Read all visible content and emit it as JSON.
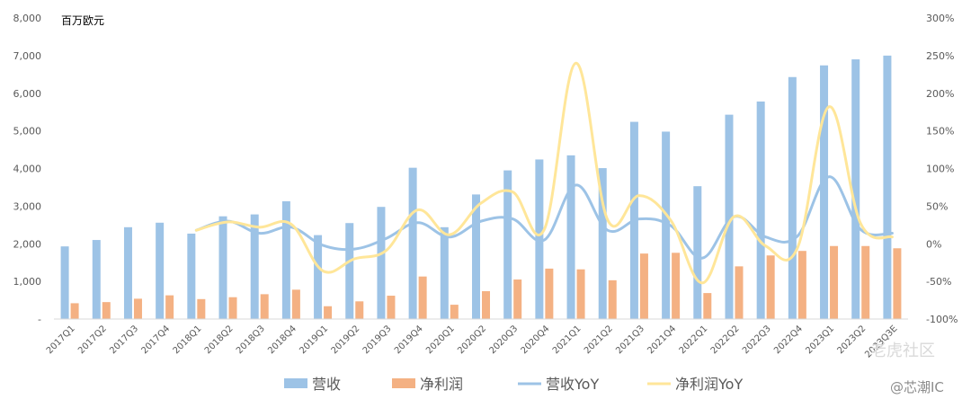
{
  "chart_data": {
    "type": "bar",
    "unit_label": "百万欧元",
    "categories": [
      "2017Q1",
      "2017Q2",
      "2017Q3",
      "2017Q4",
      "2018Q1",
      "2018Q2",
      "2018Q3",
      "2018Q4",
      "2019Q1",
      "2019Q2",
      "2019Q3",
      "2019Q4",
      "2020Q1",
      "2020Q2",
      "2020Q3",
      "2020Q4",
      "2021Q1",
      "2021Q2",
      "2021Q3",
      "2021Q4",
      "2022Q1",
      "2022Q2",
      "2022Q3",
      "2022Q4",
      "2023Q1",
      "2023Q2",
      "2023Q3E"
    ],
    "series": [
      {
        "name": "营收",
        "kind": "bar",
        "axis": "left",
        "color": "#9dc3e6",
        "values": [
          1930,
          2100,
          2440,
          2560,
          2270,
          2730,
          2780,
          3130,
          2230,
          2550,
          2980,
          4020,
          2440,
          3310,
          3950,
          4240,
          4350,
          4010,
          5240,
          4980,
          3530,
          5430,
          5780,
          6430,
          6740,
          6900,
          7000
        ]
      },
      {
        "name": "净利润",
        "kind": "bar",
        "axis": "left",
        "color": "#f4b183",
        "values": [
          420,
          450,
          540,
          630,
          530,
          580,
          660,
          780,
          340,
          470,
          620,
          1130,
          380,
          740,
          1050,
          1340,
          1320,
          1030,
          1740,
          1760,
          690,
          1400,
          1690,
          1810,
          1940,
          1940,
          1880
        ]
      },
      {
        "name": "营收YoY",
        "kind": "line",
        "axis": "right",
        "color": "#9dc3e6",
        "values": [
          null,
          null,
          null,
          null,
          18,
          30,
          14,
          22,
          -2,
          -7,
          7,
          28,
          9,
          30,
          33,
          5,
          78,
          18,
          33,
          24,
          -19,
          36,
          9,
          10,
          89,
          19,
          14
        ]
      },
      {
        "name": "净利润YoY",
        "kind": "line",
        "axis": "right",
        "color": "#ffe699",
        "values": [
          null,
          null,
          null,
          null,
          18,
          29,
          22,
          26,
          -36,
          -20,
          -9,
          45,
          12,
          54,
          69,
          19,
          240,
          32,
          64,
          31,
          -52,
          36,
          -3,
          -6,
          182,
          27,
          9
        ]
      }
    ],
    "left_axis": {
      "min": 0,
      "max": 8000,
      "ticks": [
        "-",
        "1,000",
        "2,000",
        "3,000",
        "4,000",
        "5,000",
        "6,000",
        "7,000",
        "8,000"
      ]
    },
    "right_axis": {
      "min": -100,
      "max": 300,
      "ticks": [
        "-100%",
        "-50%",
        "0%",
        "50%",
        "100%",
        "150%",
        "200%",
        "250%",
        "300%"
      ]
    },
    "legend_position": "bottom",
    "grid": false
  },
  "watermark": {
    "text1": "老虎社区",
    "text2": "@芯潮IC"
  },
  "colors": {
    "bar1": "#9dc3e6",
    "bar2": "#f4b183",
    "line1": "#9dc3e6",
    "line2": "#ffe699"
  }
}
